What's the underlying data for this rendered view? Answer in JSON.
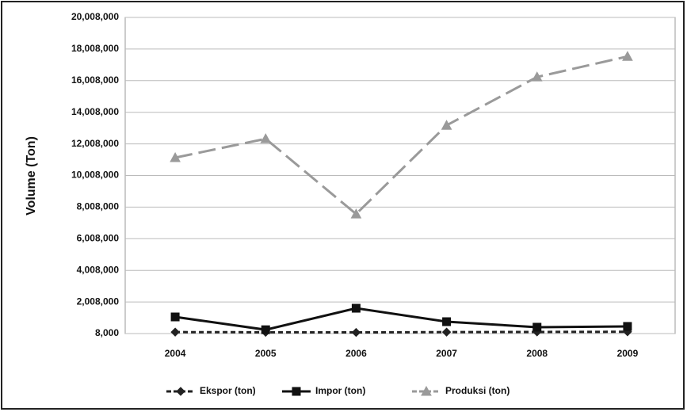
{
  "chart_data": {
    "type": "line",
    "y_label": "Volume (Ton)",
    "categories": [
      "2004",
      "2005",
      "2006",
      "2007",
      "2008",
      "2009"
    ],
    "series": [
      {
        "name": "Ekspor (ton)",
        "color": "#222222",
        "dash": "6,4",
        "marker": "diamond",
        "values": [
          100000,
          90000,
          80000,
          100000,
          110000,
          120000
        ]
      },
      {
        "name": "Impor (ton)",
        "color": "#111111",
        "dash": "",
        "marker": "square",
        "values": [
          1060000,
          250000,
          1610000,
          760000,
          410000,
          460000
        ]
      },
      {
        "name": "Produksi (ton)",
        "color": "#9a9a9a",
        "dash": "22,8",
        "marker": "triangle",
        "values": [
          11135000,
          12330000,
          7570000,
          13180000,
          16240000,
          17540000
        ]
      }
    ],
    "ylim": [
      8000,
      20008000
    ],
    "yticks": [
      {
        "value": 8000,
        "label": "8,000"
      },
      {
        "value": 2008000,
        "label": "2,008,000"
      },
      {
        "value": 4008000,
        "label": "4,008,000"
      },
      {
        "value": 6008000,
        "label": "6,008,000"
      },
      {
        "value": 8008000,
        "label": "8,008,000"
      },
      {
        "value": 10008000,
        "label": "10,008,000"
      },
      {
        "value": 12008000,
        "label": "12,008,000"
      },
      {
        "value": 14008000,
        "label": "14,008,000"
      },
      {
        "value": 16008000,
        "label": "16,008,000"
      },
      {
        "value": 18008000,
        "label": "18,008,000"
      },
      {
        "value": 20008000,
        "label": "20,008,000"
      }
    ],
    "grid": true
  }
}
